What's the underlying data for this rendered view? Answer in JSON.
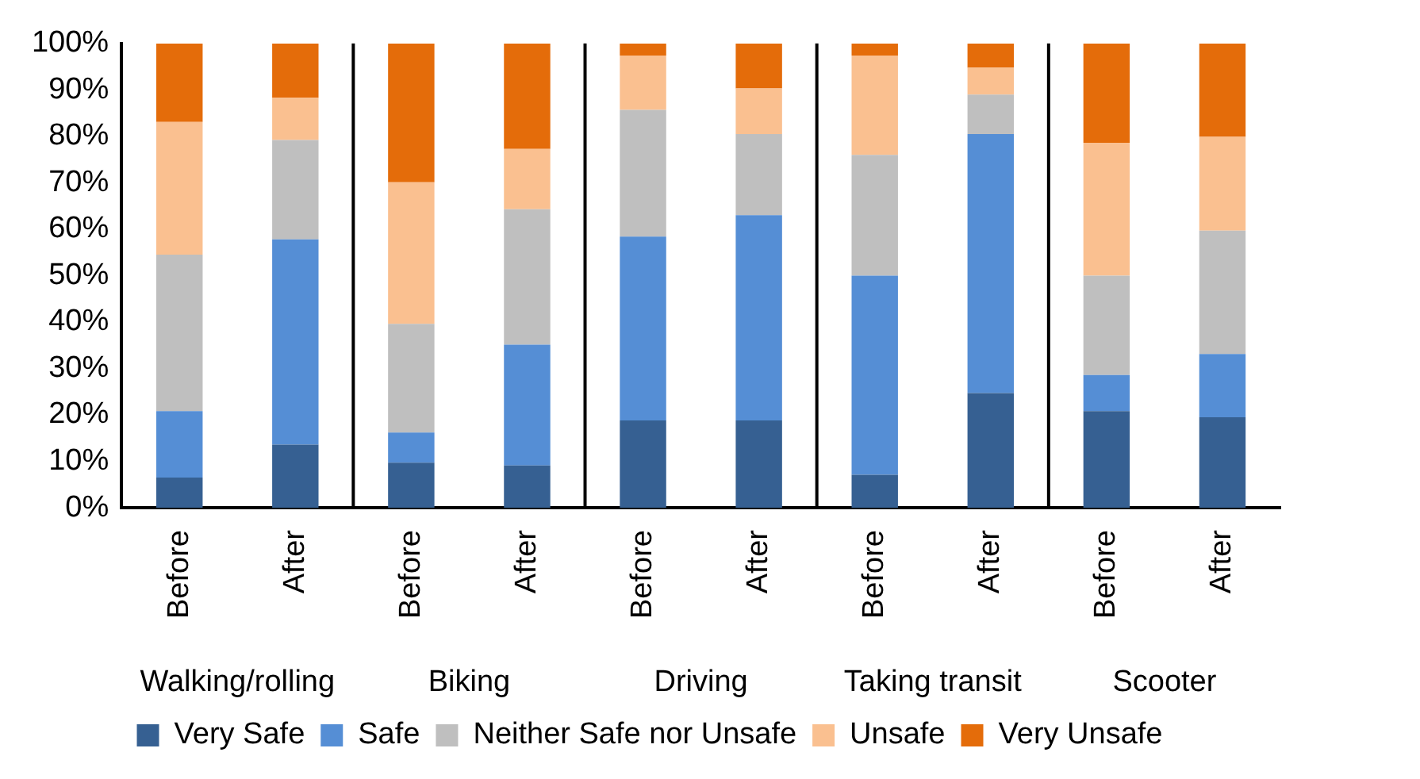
{
  "chart_data": {
    "type": "bar",
    "stacked": true,
    "categories": [
      "Before",
      "After",
      "Before",
      "After",
      "Before",
      "After",
      "Before",
      "After",
      "Before",
      "After"
    ],
    "annotations": [
      "Walking/rolling",
      "Biking",
      "Driving",
      "Taking transit",
      "Scooter"
    ],
    "series": [
      {
        "name": "Very Safe",
        "color": "#366092",
        "values": [
          6.5,
          13.6,
          9.7,
          9.1,
          18.8,
          18.8,
          7.1,
          24.7,
          20.8,
          19.5
        ]
      },
      {
        "name": "Safe",
        "color": "#558ed5",
        "values": [
          14.3,
          44.2,
          6.5,
          26.0,
          39.6,
          44.2,
          42.9,
          55.8,
          7.8,
          13.6
        ]
      },
      {
        "name": "Neither Safe nor Unsafe",
        "color": "#bfbfbf",
        "values": [
          33.7,
          21.4,
          23.4,
          29.2,
          27.3,
          17.5,
          26.0,
          8.5,
          21.4,
          26.6
        ]
      },
      {
        "name": "Unsafe",
        "color": "#fac090",
        "values": [
          28.6,
          9.1,
          30.5,
          13.0,
          11.7,
          9.8,
          21.4,
          5.8,
          28.6,
          20.2
        ]
      },
      {
        "name": "Very Unsafe",
        "color": "#e46c0a",
        "values": [
          16.9,
          11.7,
          29.9,
          22.7,
          2.6,
          9.7,
          2.6,
          5.2,
          21.4,
          20.1
        ]
      }
    ],
    "ylim": [
      0,
      100
    ],
    "yticks": [
      {
        "value": 0,
        "label": "0%"
      },
      {
        "value": 10,
        "label": "10%"
      },
      {
        "value": 20,
        "label": "20%"
      },
      {
        "value": 30,
        "label": "30%"
      },
      {
        "value": 40,
        "label": "40%"
      },
      {
        "value": 50,
        "label": "50%"
      },
      {
        "value": 60,
        "label": "60%"
      },
      {
        "value": 70,
        "label": "70%"
      },
      {
        "value": 80,
        "label": "80%"
      },
      {
        "value": 90,
        "label": "90%"
      },
      {
        "value": 100,
        "label": "100%"
      }
    ],
    "grid": false,
    "legend": "bottom"
  }
}
